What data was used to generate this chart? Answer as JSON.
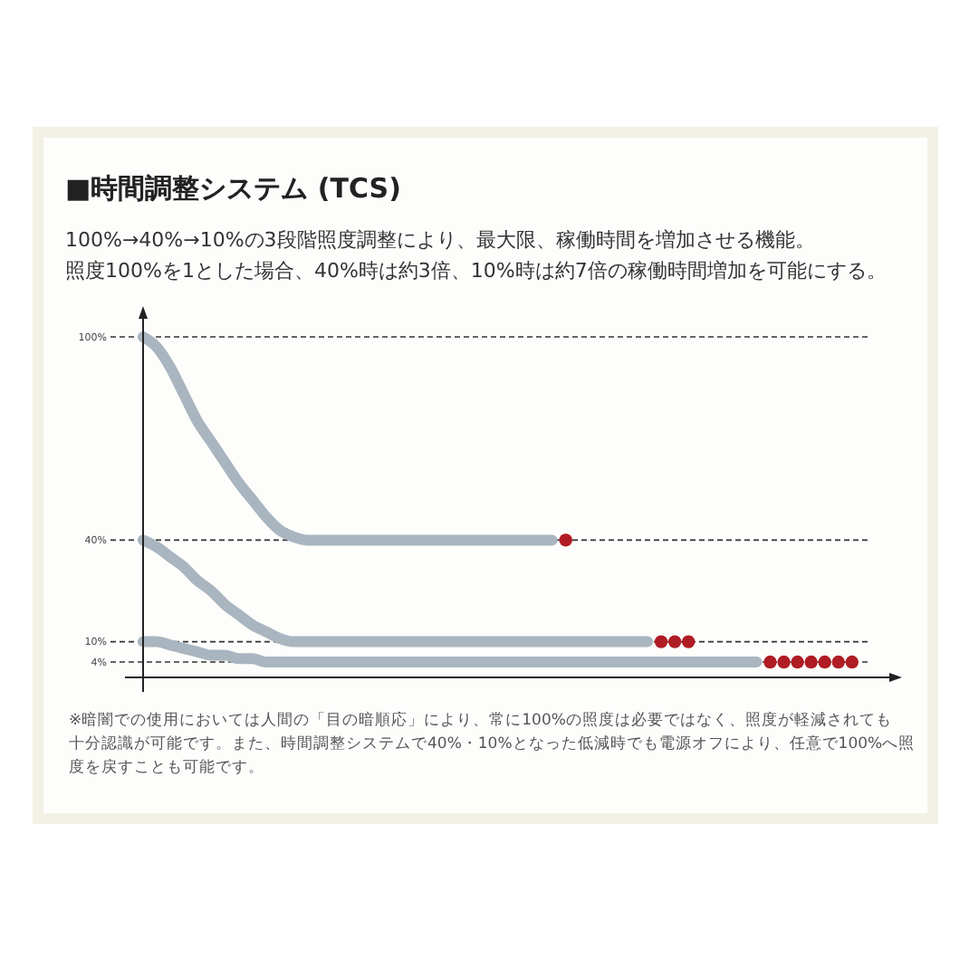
{
  "chart_data": {
    "type": "line",
    "title": "■時間調整システム (TCS)",
    "subtitle": "100%→40%→10%の3段階照度調整により、最大限、稼働時間を増加させる機能。照度100%を1とした場合、40%時は約3倍、10%時は約7倍の稼働時間増加を可能にする。",
    "annotations": [
      "※暗闇での使用においては人間の「目の暗順応」により、常に100%の照度は必要ではなく、照度が軽減されても十分認識が可能です。また、時間調整システムで40%・10%となった低減時でも電源オフにより、任意で100%へ照度を戻すことも可能です。"
    ],
    "categories": [
      null,
      null,
      null,
      null,
      null,
      null,
      null,
      null,
      null,
      null,
      null,
      null,
      null,
      null,
      null,
      null,
      null,
      null,
      null,
      null,
      null,
      null,
      null,
      null,
      null,
      null,
      null,
      null,
      null,
      null,
      null,
      null,
      null,
      null,
      null,
      null,
      null,
      null,
      null,
      null,
      null,
      null,
      null,
      null,
      null,
      null,
      null,
      null,
      null,
      null,
      null,
      null,
      null,
      null,
      null,
      null
    ],
    "ylim": [
      0,
      100
    ],
    "yticks": [
      {
        "value": 4,
        "label": "4%"
      },
      {
        "value": 10,
        "label": "10%"
      },
      {
        "value": 40,
        "label": "40%"
      },
      {
        "value": 100,
        "label": "100%"
      }
    ],
    "grid": "y",
    "line_style": "solid",
    "marker": "none",
    "series": [
      {
        "color": "#a9b5bf",
        "values": [
          100,
          97,
          91,
          83,
          75,
          69,
          63,
          57,
          52,
          47,
          43,
          41,
          40,
          40,
          40,
          40,
          40,
          40,
          40,
          40,
          40,
          40,
          40,
          40,
          40,
          40,
          40,
          40,
          40,
          40,
          40,
          null,
          null,
          null,
          null,
          null,
          null,
          null,
          null,
          null,
          null,
          null,
          null,
          null,
          null,
          null,
          null,
          null,
          null,
          null,
          null,
          null,
          null,
          null,
          null,
          null
        ]
      },
      {
        "color": "#a9b5bf",
        "values": [
          40,
          38,
          35,
          32,
          28,
          25,
          21,
          18,
          15,
          13,
          11,
          10,
          10,
          10,
          10,
          10,
          10,
          10,
          10,
          10,
          10,
          10,
          10,
          10,
          10,
          10,
          10,
          10,
          10,
          10,
          10,
          10,
          10,
          10,
          10,
          10,
          10,
          10,
          null,
          null,
          null,
          null,
          null,
          null,
          null,
          null,
          null,
          null,
          null,
          null,
          null,
          null,
          null,
          null,
          null,
          null
        ]
      },
      {
        "color": "#a9b5bf",
        "values": [
          10,
          10,
          9,
          8,
          7,
          6,
          6,
          5,
          5,
          4,
          4,
          4,
          4,
          4,
          4,
          4,
          4,
          4,
          4,
          4,
          4,
          4,
          4,
          4,
          4,
          4,
          4,
          4,
          4,
          4,
          4,
          4,
          4,
          4,
          4,
          4,
          4,
          4,
          4,
          4,
          4,
          4,
          4,
          4,
          4,
          4,
          null,
          null,
          null,
          null,
          null,
          null,
          null,
          null,
          null,
          null
        ]
      },
      {
        "type": "scatter",
        "marker": "circle",
        "color": "#b01c24",
        "values": [
          null,
          null,
          null,
          null,
          null,
          null,
          null,
          null,
          null,
          null,
          null,
          null,
          null,
          null,
          null,
          null,
          null,
          null,
          null,
          null,
          null,
          null,
          null,
          null,
          null,
          null,
          null,
          null,
          null,
          null,
          null,
          40,
          null,
          null,
          null,
          null,
          null,
          null,
          10,
          10,
          10,
          null,
          null,
          null,
          null,
          null,
          4,
          4,
          4,
          4,
          4,
          4,
          4,
          null,
          null,
          null
        ]
      }
    ]
  }
}
